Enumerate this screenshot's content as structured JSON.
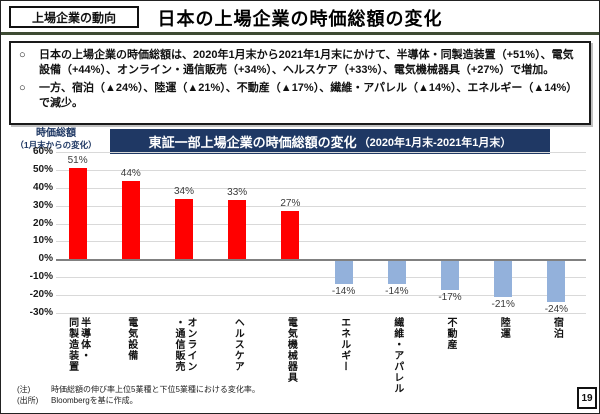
{
  "header": {
    "tag": "上場企業の動向",
    "title": "日本の上場企業の時価総額の変化"
  },
  "summary": {
    "marker": "○",
    "bullet1": "日本の上場企業の時価総額は、2020年1月末から2021年1月末にかけて、半導体・同製造装置（+51%）、電気設備（+44%）、オンライン・通信販売（+34%）、ヘルスケア（+33%）、電気機械器具（+27%）で増加。",
    "bullet2": "一方、宿泊（▲24%）、陸運（▲21%）、不動産（▲17%）、繊維・アパレル（▲14%）、エネルギー（▲14%）で減少。"
  },
  "chart": {
    "axis_title_line1": "時価総額",
    "axis_title_line2": "（1月末からの変化）",
    "title": "東証一部上場企業の時価総額の変化",
    "title_period": "（2020年1月末-2021年1月末）"
  },
  "chart_data": {
    "type": "bar",
    "title": "東証一部上場企業の時価総額の変化（2020年1月末-2021年1月末）",
    "ylabel": "時価総額（1月末からの変化）",
    "categories": [
      "半導体・\n同製造装置",
      "電気設備",
      "オンライン\n・通信販売",
      "ヘルスケア",
      "電気機械器具",
      "エネルギー",
      "繊維・アパレル",
      "不動産",
      "陸運",
      "宿泊"
    ],
    "values": [
      51,
      44,
      34,
      33,
      27,
      -14,
      -14,
      -17,
      -21,
      -24
    ],
    "labels": [
      "51%",
      "44%",
      "34%",
      "33%",
      "27%",
      "-14%",
      "-14%",
      "-17%",
      "-21%",
      "-24%"
    ],
    "ylim": [
      -30,
      60
    ],
    "ytick_step": 10,
    "ytick_suffix": "%",
    "grid": true,
    "legend": false,
    "positive_color": "#FF0000",
    "negative_color": "#93B1DB"
  },
  "footer": {
    "note_label": "(注)",
    "note_text": "時価総額の伸び率上位5業種と下位5業種における変化率。",
    "source_label": "(出所)",
    "source_text": "Bloombergを基に作成。",
    "page_number": "19"
  },
  "colors": {
    "accent_navy": "#1F3864",
    "bar_positive": "#FF0000",
    "bar_negative": "#93B1DB",
    "header_rule_green": "#3E4B33",
    "gridline": "#D9D9D9",
    "zero_axis": "#808080"
  }
}
